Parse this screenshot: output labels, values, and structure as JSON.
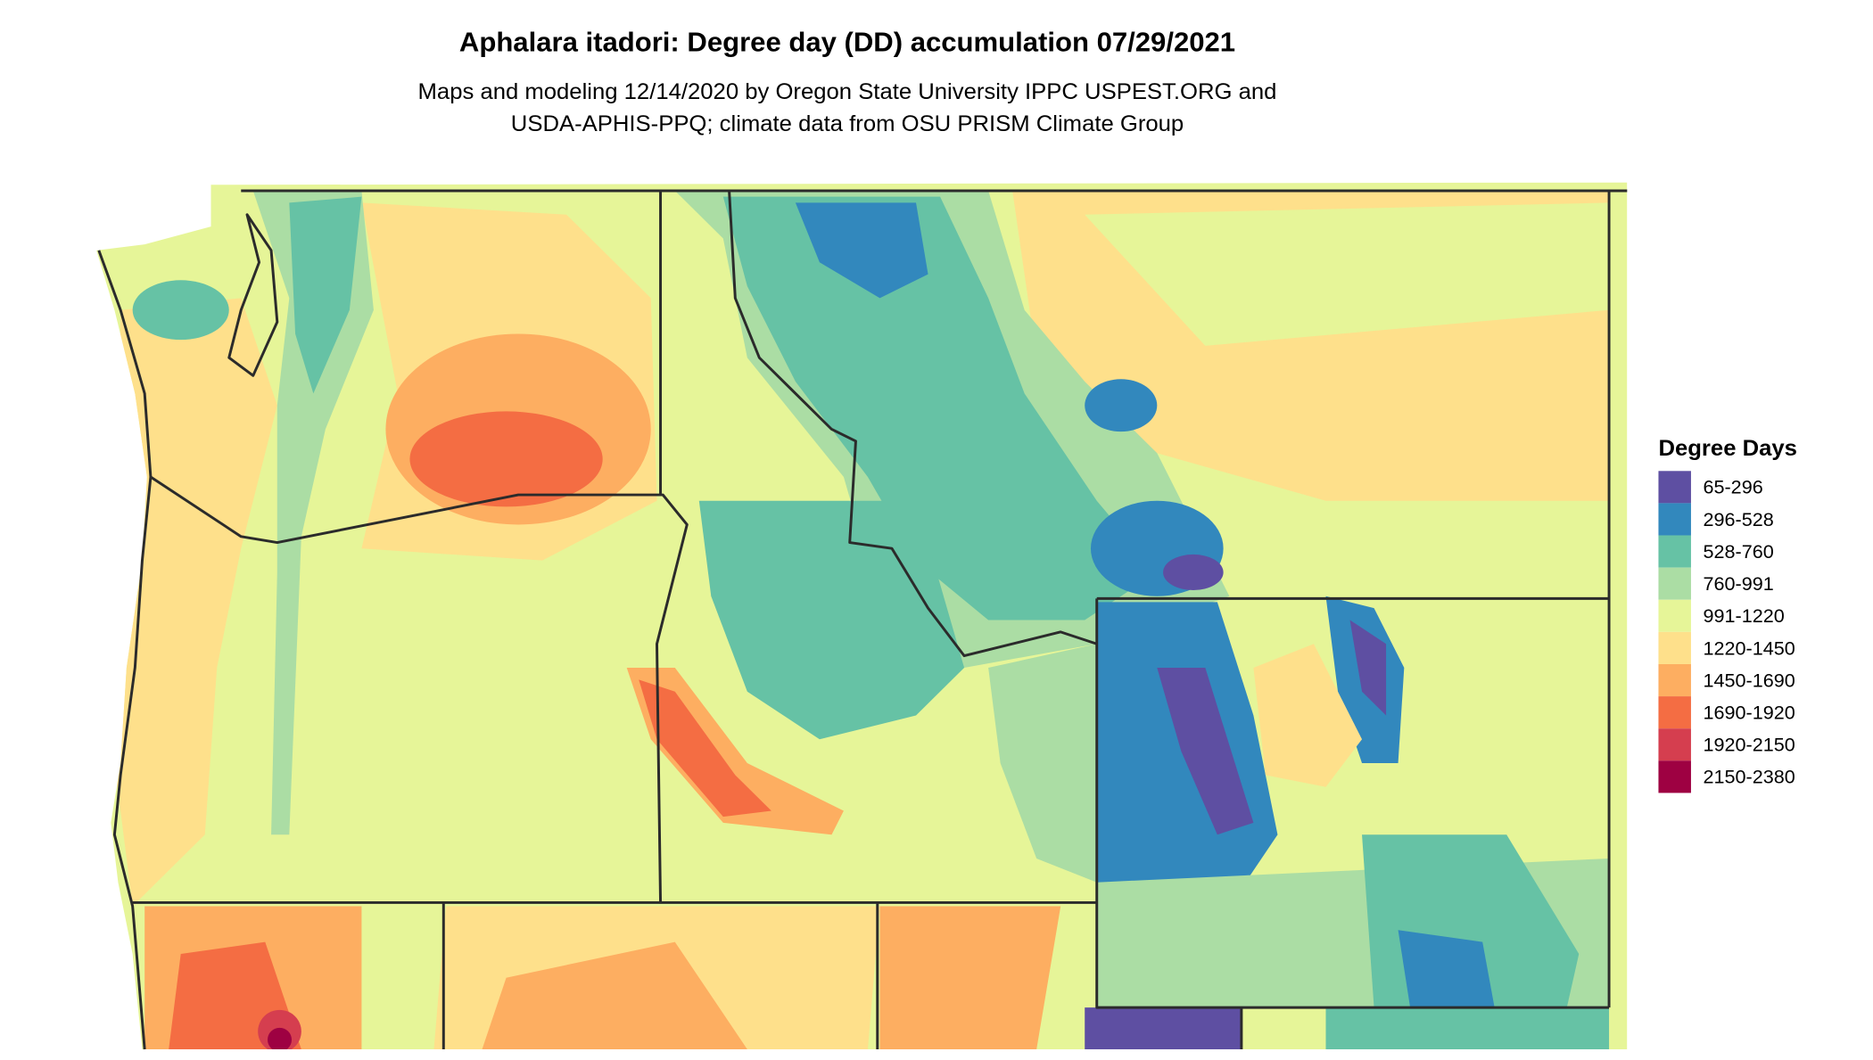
{
  "title": "Aphalara itadori: Degree day (DD) accumulation 07/29/2021",
  "subtitle": [
    "Maps and modeling 12/14/2020 by Oregon State University IPPC USPEST.ORG and",
    "USDA-APHIS-PPQ; climate data from OSU PRISM Climate Group"
  ],
  "legend": {
    "title": "Degree Days",
    "items": [
      {
        "label": "65-296",
        "color": "#5e4fa2"
      },
      {
        "label": "296-528",
        "color": "#3288bd"
      },
      {
        "label": "528-760",
        "color": "#66c2a5"
      },
      {
        "label": "760-991",
        "color": "#abdda4"
      },
      {
        "label": "991-1220",
        "color": "#e6f598"
      },
      {
        "label": "1220-1450",
        "color": "#fee08b"
      },
      {
        "label": "1450-1690",
        "color": "#fdae61"
      },
      {
        "label": "1690-1920",
        "color": "#f46d43"
      },
      {
        "label": "1920-2150",
        "color": "#d53e4f"
      },
      {
        "label": "2150-2380",
        "color": "#9e0142"
      }
    ]
  }
}
